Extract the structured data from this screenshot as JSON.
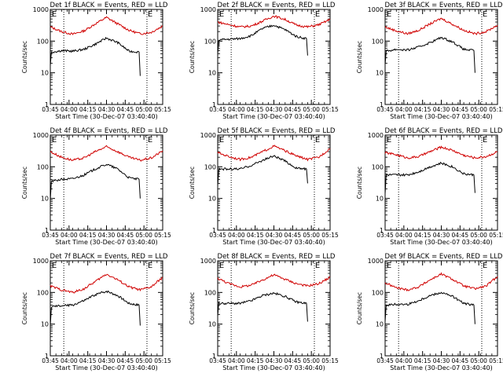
{
  "chart_data": [
    {
      "type": "line",
      "title": "Det 1f BLACK = Events, RED = LLD",
      "xlabel": "Start Time (30-Dec-07 03:40:40)",
      "ylabel": "Counts/sec",
      "x_ticks": [
        "03:45",
        "04:00",
        "04:15",
        "04:30",
        "04:45",
        "05:00",
        "05:15"
      ],
      "x_range_minutes": [
        0,
        100
      ],
      "y_scale": "log",
      "ylim": [
        1,
        1000
      ],
      "y_ticks": [
        "1",
        "10",
        "100",
        "1000"
      ],
      "vlines_minutes": [
        12,
        86
      ],
      "markers": [
        {
          "label": "E",
          "minutes": 86
        }
      ],
      "series": [
        {
          "color": "#d00000",
          "x": [
            0,
            10,
            20,
            30,
            40,
            50,
            60,
            70,
            80,
            90,
            100
          ],
          "y": [
            280,
            200,
            165,
            210,
            350,
            560,
            350,
            220,
            170,
            190,
            300
          ]
        },
        {
          "color": "#000000",
          "x": [
            0,
            1,
            10,
            20,
            30,
            40,
            50,
            60,
            70,
            79,
            80
          ],
          "y": [
            17,
            45,
            50,
            48,
            55,
            80,
            125,
            90,
            48,
            45,
            8
          ]
        }
      ]
    },
    {
      "type": "line",
      "title": "Det 2f BLACK = Events, RED = LLD",
      "xlabel": "Start Time (30-Dec-07 03:40:40)",
      "ylabel": "Counts/sec",
      "x_ticks": [
        "03:45",
        "04:00",
        "04:15",
        "04:30",
        "04:45",
        "05:00",
        "05:15"
      ],
      "x_range_minutes": [
        0,
        100
      ],
      "y_scale": "log",
      "ylim": [
        1,
        1000
      ],
      "y_ticks": [
        "1",
        "10",
        "100",
        "1000"
      ],
      "vlines_minutes": [
        12,
        86
      ],
      "markers": [
        {
          "label": "E",
          "minutes": 86
        }
      ],
      "series": [
        {
          "color": "#d00000",
          "x": [
            0,
            10,
            20,
            30,
            40,
            50,
            60,
            70,
            80,
            90,
            100
          ],
          "y": [
            400,
            330,
            280,
            300,
            430,
            620,
            480,
            320,
            280,
            330,
            480
          ]
        },
        {
          "color": "#000000",
          "x": [
            0,
            1,
            10,
            20,
            30,
            40,
            50,
            60,
            70,
            79,
            80
          ],
          "y": [
            40,
            110,
            115,
            120,
            150,
            250,
            320,
            230,
            140,
            120,
            35
          ]
        }
      ]
    },
    {
      "type": "line",
      "title": "Det 3f BLACK = Events, RED = LLD",
      "xlabel": "Start Time (30-Dec-07 03:40:40)",
      "ylabel": "Counts/sec",
      "x_ticks": [
        "03:45",
        "04:00",
        "04:15",
        "04:30",
        "04:45",
        "05:00",
        "05:15"
      ],
      "x_range_minutes": [
        0,
        100
      ],
      "y_scale": "log",
      "ylim": [
        1,
        1000
      ],
      "y_ticks": [
        "1",
        "10",
        "100",
        "1000"
      ],
      "vlines_minutes": [
        12,
        86
      ],
      "markers": [
        {
          "label": "E",
          "minutes": 86
        }
      ],
      "series": [
        {
          "color": "#d00000",
          "x": [
            0,
            10,
            20,
            30,
            40,
            50,
            60,
            70,
            80,
            90,
            100
          ],
          "y": [
            280,
            210,
            170,
            220,
            350,
            520,
            340,
            220,
            170,
            200,
            320
          ]
        },
        {
          "color": "#000000",
          "x": [
            0,
            1,
            10,
            20,
            30,
            40,
            50,
            60,
            70,
            79,
            80
          ],
          "y": [
            18,
            48,
            55,
            52,
            65,
            90,
            130,
            95,
            55,
            50,
            10
          ]
        }
      ]
    },
    {
      "type": "line",
      "title": "Det 4f BLACK = Events, RED = LLD",
      "xlabel": "Start Time (30-Dec-07 03:40:40)",
      "ylabel": "Counts/sec",
      "x_ticks": [
        "03:45",
        "04:00",
        "04:15",
        "04:30",
        "04:45",
        "05:00",
        "05:15"
      ],
      "x_range_minutes": [
        0,
        100
      ],
      "y_scale": "log",
      "ylim": [
        1,
        1000
      ],
      "y_ticks": [
        "1",
        "10",
        "100",
        "1000"
      ],
      "vlines_minutes": [
        12,
        86
      ],
      "markers": [
        {
          "label": "E",
          "minutes": 86
        }
      ],
      "series": [
        {
          "color": "#d00000",
          "x": [
            0,
            10,
            20,
            30,
            40,
            50,
            60,
            70,
            80,
            90,
            100
          ],
          "y": [
            300,
            200,
            160,
            190,
            300,
            430,
            300,
            200,
            160,
            190,
            320
          ]
        },
        {
          "color": "#000000",
          "x": [
            0,
            1,
            10,
            20,
            30,
            40,
            50,
            60,
            70,
            79,
            80
          ],
          "y": [
            9,
            35,
            40,
            42,
            55,
            85,
            120,
            85,
            45,
            40,
            10
          ]
        }
      ]
    },
    {
      "type": "line",
      "title": "Det 5f BLACK = Events, RED = LLD",
      "xlabel": "Start Time (30-Dec-07 03:40:40)",
      "ylabel": "Counts/sec",
      "x_ticks": [
        "03:45",
        "04:00",
        "04:15",
        "04:30",
        "04:45",
        "05:00",
        "05:15"
      ],
      "x_range_minutes": [
        0,
        100
      ],
      "y_scale": "log",
      "ylim": [
        1,
        1000
      ],
      "y_ticks": [
        "1",
        "10",
        "100",
        "1000"
      ],
      "vlines_minutes": [
        12,
        86
      ],
      "markers": [
        {
          "label": "E",
          "minutes": 86
        }
      ],
      "series": [
        {
          "color": "#d00000",
          "x": [
            0,
            10,
            20,
            30,
            40,
            50,
            60,
            70,
            80,
            90,
            100
          ],
          "y": [
            280,
            210,
            170,
            200,
            300,
            450,
            320,
            220,
            170,
            200,
            380
          ]
        },
        {
          "color": "#000000",
          "x": [
            0,
            1,
            10,
            20,
            30,
            40,
            50,
            60,
            70,
            79,
            80
          ],
          "y": [
            25,
            85,
            85,
            85,
            110,
            160,
            220,
            150,
            90,
            85,
            30
          ]
        }
      ]
    },
    {
      "type": "line",
      "title": "Det 6f BLACK = Events, RED = LLD",
      "xlabel": "Start Time (30-Dec-07 03:40:40)",
      "ylabel": "Counts/sec",
      "x_ticks": [
        "03:45",
        "04:00",
        "04:15",
        "04:30",
        "04:45",
        "05:00",
        "05:15"
      ],
      "x_range_minutes": [
        0,
        100
      ],
      "y_scale": "log",
      "ylim": [
        1,
        1000
      ],
      "y_ticks": [
        "1",
        "10",
        "100",
        "1000"
      ],
      "vlines_minutes": [
        12,
        86
      ],
      "markers": [
        {
          "label": "E",
          "minutes": 86
        }
      ],
      "series": [
        {
          "color": "#d00000",
          "x": [
            0,
            10,
            20,
            30,
            40,
            50,
            60,
            70,
            80,
            90,
            100
          ],
          "y": [
            280,
            240,
            190,
            210,
            300,
            420,
            330,
            230,
            190,
            210,
            300
          ]
        },
        {
          "color": "#000000",
          "x": [
            0,
            1,
            10,
            20,
            30,
            40,
            50,
            60,
            70,
            79,
            80
          ],
          "y": [
            14,
            55,
            55,
            55,
            70,
            100,
            130,
            100,
            60,
            55,
            15
          ]
        }
      ]
    },
    {
      "type": "line",
      "title": "Det 7f BLACK = Events, RED = LLD",
      "xlabel": "Start Time (30-Dec-07 03:40:40)",
      "ylabel": "Counts/sec",
      "x_ticks": [
        "03:45",
        "04:00",
        "04:15",
        "04:30",
        "04:45",
        "05:00",
        "05:15"
      ],
      "x_range_minutes": [
        0,
        100
      ],
      "y_scale": "log",
      "ylim": [
        1,
        1000
      ],
      "y_ticks": [
        "1",
        "10",
        "100",
        "1000"
      ],
      "vlines_minutes": [
        12,
        86
      ],
      "markers": [
        {
          "label": "E",
          "minutes": 86
        }
      ],
      "series": [
        {
          "color": "#d00000",
          "x": [
            0,
            10,
            20,
            30,
            40,
            50,
            60,
            70,
            80,
            90,
            100
          ],
          "y": [
            160,
            120,
            100,
            130,
            220,
            380,
            250,
            150,
            120,
            150,
            300
          ]
        },
        {
          "color": "#000000",
          "x": [
            0,
            1,
            10,
            20,
            30,
            40,
            50,
            60,
            70,
            79,
            80
          ],
          "y": [
            9,
            35,
            38,
            40,
            55,
            85,
            110,
            80,
            45,
            40,
            9
          ]
        }
      ]
    },
    {
      "type": "line",
      "title": "Det 8f BLACK = Events, RED = LLD",
      "xlabel": "Start Time (30-Dec-07 03:40:40)",
      "ylabel": "Counts/sec",
      "x_ticks": [
        "03:45",
        "04:00",
        "04:15",
        "04:30",
        "04:45",
        "05:00",
        "05:15"
      ],
      "x_range_minutes": [
        0,
        100
      ],
      "y_scale": "log",
      "ylim": [
        1,
        1000
      ],
      "y_ticks": [
        "1",
        "10",
        "100",
        "1000"
      ],
      "vlines_minutes": [
        12,
        86
      ],
      "markers": [
        {
          "label": "E",
          "minutes": 86
        }
      ],
      "series": [
        {
          "color": "#d00000",
          "x": [
            0,
            10,
            20,
            30,
            40,
            50,
            60,
            70,
            80,
            90,
            100
          ],
          "y": [
            280,
            190,
            150,
            170,
            250,
            360,
            260,
            190,
            160,
            190,
            300
          ]
        },
        {
          "color": "#000000",
          "x": [
            0,
            1,
            10,
            20,
            30,
            40,
            50,
            60,
            70,
            79,
            80
          ],
          "y": [
            18,
            45,
            45,
            45,
            55,
            80,
            95,
            75,
            50,
            45,
            12
          ]
        }
      ]
    },
    {
      "type": "line",
      "title": "Det 9f BLACK = Events, RED = LLD",
      "xlabel": "Start Time (30-Dec-07 03:40:40)",
      "ylabel": "Counts/sec",
      "x_ticks": [
        "03:45",
        "04:00",
        "04:15",
        "04:30",
        "04:45",
        "05:00",
        "05:15"
      ],
      "x_range_minutes": [
        0,
        100
      ],
      "y_scale": "log",
      "ylim": [
        1,
        1000
      ],
      "y_ticks": [
        "1",
        "10",
        "100",
        "1000"
      ],
      "vlines_minutes": [
        12,
        86
      ],
      "markers": [
        {
          "label": "E",
          "minutes": 86
        }
      ],
      "series": [
        {
          "color": "#d00000",
          "x": [
            0,
            10,
            20,
            30,
            40,
            50,
            60,
            70,
            80,
            90,
            100
          ],
          "y": [
            200,
            140,
            120,
            150,
            250,
            380,
            260,
            160,
            130,
            160,
            320
          ]
        },
        {
          "color": "#000000",
          "x": [
            0,
            1,
            10,
            20,
            30,
            40,
            50,
            60,
            70,
            79,
            80
          ],
          "y": [
            12,
            40,
            42,
            42,
            55,
            80,
            100,
            75,
            45,
            40,
            10
          ]
        }
      ]
    }
  ]
}
